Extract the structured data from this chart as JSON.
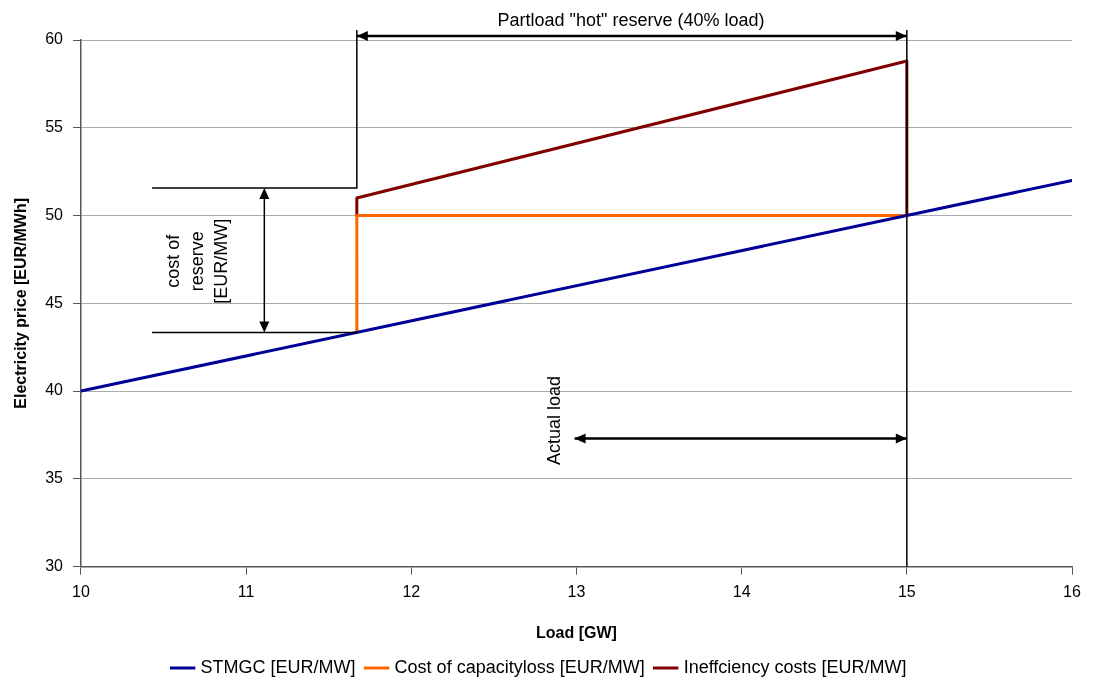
{
  "chart_data": {
    "type": "line",
    "xlabel": "Load [GW]",
    "ylabel": "Electricity price [EUR/MWh]",
    "xlim": [
      10,
      16
    ],
    "xticks": [
      10,
      11,
      12,
      13,
      14,
      15,
      16
    ],
    "ylim": [
      30,
      60
    ],
    "yticks": [
      30,
      35,
      40,
      45,
      50,
      55,
      60
    ],
    "grid": "y",
    "legend": "bottom",
    "marker": "none",
    "line_style": "solid",
    "series": [
      {
        "name": "STMGC [EUR/MW]",
        "color": "#000099",
        "x": [
          10,
          16
        ],
        "values": [
          40,
          52
        ]
      },
      {
        "name": "Cost of capacityloss [EUR/MW]",
        "color": "#ff6600",
        "x": [
          11.67,
          11.67,
          15
        ],
        "values": [
          43.33,
          50,
          50
        ]
      },
      {
        "name": "Ineffciency costs [EUR/MW]",
        "color": "#800000",
        "x": [
          11.67,
          11.67,
          15,
          15
        ],
        "values": [
          50,
          51,
          58.8,
          50
        ]
      }
    ],
    "ref_lines": [
      {
        "axis": "x",
        "value": 15,
        "color": "#000000"
      }
    ],
    "annotations": [
      "Partload \"hot\" reserve (40% load)",
      "cost of reserve [EUR/MW]",
      {
        "text": "Actual load",
        "x": 15,
        "y": 37.3
      }
    ]
  }
}
